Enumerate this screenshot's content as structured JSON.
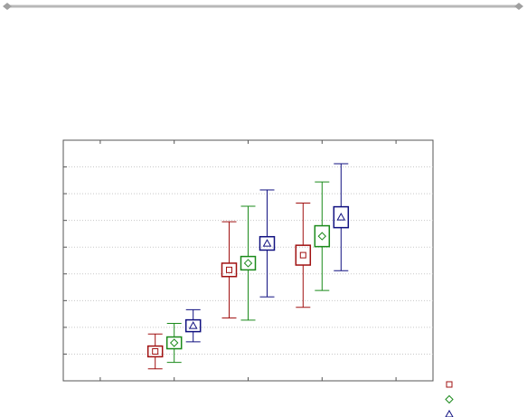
{
  "chart_data": {
    "type": "errorbar",
    "x": [
      1.5,
      2.5,
      3.5
    ],
    "xlim": [
      0,
      5
    ],
    "xticks": [
      0.5,
      1.5,
      2.5,
      3.5,
      4.5
    ],
    "ylim": [
      0,
      9
    ],
    "yticks": [
      0,
      1,
      2,
      3,
      4,
      5,
      6,
      7,
      8,
      9
    ],
    "grid": true,
    "legend": "bottom-right",
    "series": [
      {
        "color": "#a01010",
        "marker": "square",
        "values": [
          1.1,
          4.15,
          4.7
        ],
        "box_errors": [
          0.2,
          0.25,
          0.37
        ],
        "errors": [
          0.65,
          1.8,
          1.95
        ]
      },
      {
        "color": "#1a8a1a",
        "marker": "diamond",
        "values": [
          1.42,
          4.4,
          5.41
        ],
        "box_errors": [
          0.22,
          0.25,
          0.39
        ],
        "errors": [
          0.73,
          2.13,
          2.03
        ]
      },
      {
        "color": "#101080",
        "marker": "triangle",
        "values": [
          2.06,
          5.14,
          6.12
        ],
        "box_errors": [
          0.22,
          0.25,
          0.39
        ],
        "errors": [
          0.6,
          2.0,
          2.0
        ]
      }
    ]
  }
}
